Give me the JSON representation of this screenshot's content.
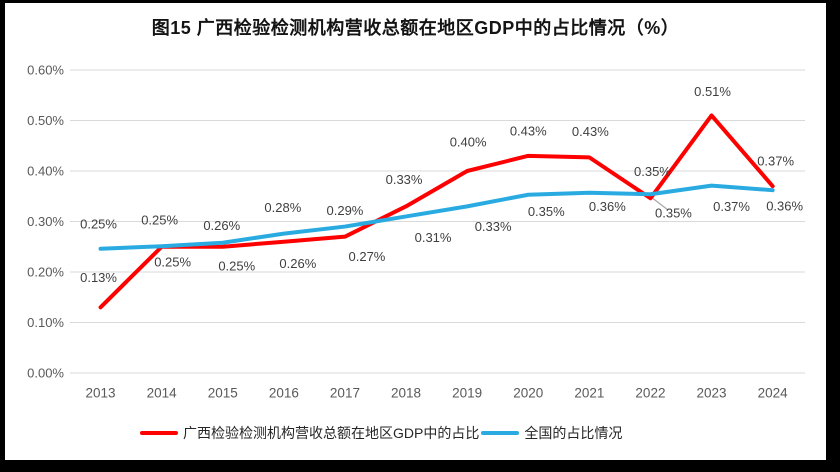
{
  "title": "图15 广西检验检测机构营收总额在地区GDP中的占比情况（%）",
  "chart_data": {
    "type": "line",
    "categories": [
      "2013",
      "2014",
      "2015",
      "2016",
      "2017",
      "2018",
      "2019",
      "2020",
      "2021",
      "2022",
      "2023",
      "2024"
    ],
    "y_ticks": [
      "0.00%",
      "0.10%",
      "0.20%",
      "0.30%",
      "0.40%",
      "0.50%",
      "0.60%"
    ],
    "ylim": [
      0,
      0.6
    ],
    "grid": true,
    "legend_position": "bottom",
    "series": [
      {
        "key": "guangxi",
        "name": "广西检验检测机构营收总额在地区GDP中的占比",
        "color": "#FF0000",
        "values": [
          0.13,
          0.25,
          0.25,
          0.26,
          0.27,
          0.33,
          0.4,
          0.43,
          0.427,
          0.346,
          0.51,
          0.37
        ],
        "labels": [
          "0.13%",
          "0.25%",
          "0.25%",
          "0.26%",
          "0.27%",
          "0.33%",
          "0.40%",
          "0.43%",
          "0.43%",
          "0.35%",
          "0.51%",
          "0.37%"
        ]
      },
      {
        "key": "national",
        "name": "全国的占比情况",
        "color": "#29ABE2",
        "values": [
          0.246,
          0.251,
          0.258,
          0.276,
          0.29,
          0.31,
          0.33,
          0.353,
          0.357,
          0.354,
          0.371,
          0.362
        ],
        "labels": [
          "0.25%",
          "0.25%",
          "0.26%",
          "0.28%",
          "0.29%",
          "0.31%",
          "0.33%",
          "0.35%",
          "0.36%",
          "0.35%",
          "0.37%",
          "0.36%"
        ]
      }
    ]
  },
  "colors": {
    "grid": "#D9D9D9",
    "axis_text": "#595959",
    "data_label_text": "#3F3F3F",
    "leader_line": "#A6A6A6",
    "frame_border": "#000000"
  }
}
